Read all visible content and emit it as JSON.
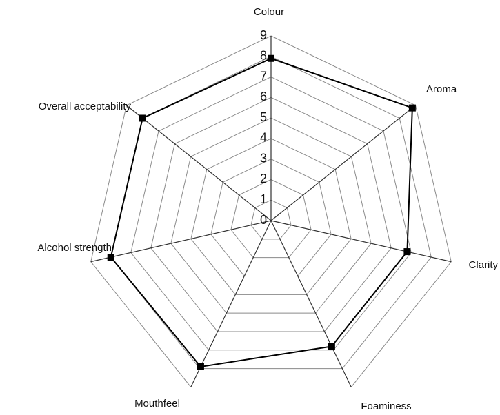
{
  "chart_data": {
    "type": "radar",
    "categories": [
      "Colour",
      "Aroma",
      "Clarity",
      "Foaminess",
      "Mouthfeel",
      "Alcohol strength",
      "Overall acceptability"
    ],
    "values": [
      7.9,
      8.8,
      6.8,
      6.8,
      7.9,
      8.0,
      8.0
    ],
    "color": "#000000",
    "ylim": [
      0,
      9
    ],
    "yticks": [
      0,
      1,
      2,
      3,
      4,
      5,
      6,
      7,
      8,
      9
    ],
    "grid": true
  }
}
